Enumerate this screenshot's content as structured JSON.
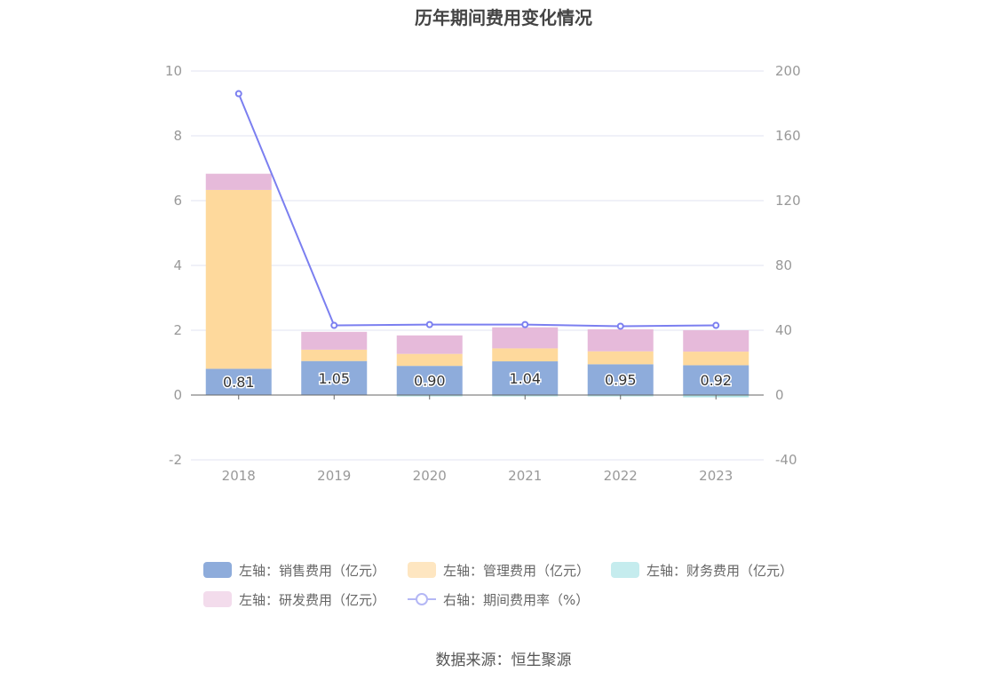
{
  "chart_data": {
    "type": "bar",
    "title": "历年期间费用变化情况",
    "categories": [
      "2018",
      "2019",
      "2020",
      "2021",
      "2022",
      "2023"
    ],
    "y_left": {
      "min": -2,
      "max": 10,
      "ticks": [
        "10",
        "8",
        "6",
        "4",
        "2",
        "0",
        "-2"
      ]
    },
    "y_right": {
      "min": -40,
      "max": 200,
      "ticks": [
        "200",
        "160",
        "120",
        "80",
        "40",
        "0",
        "-40"
      ]
    },
    "series": [
      {
        "name": "左轴：销售费用（亿元）",
        "type": "bar",
        "axis": "left",
        "color": "#8eacdb",
        "values": [
          0.81,
          1.05,
          0.9,
          1.04,
          0.95,
          0.92
        ],
        "labels": [
          "0.81",
          "1.05",
          "0.90",
          "1.04",
          "0.95",
          "0.92"
        ]
      },
      {
        "name": "左轴：管理费用（亿元）",
        "type": "bar",
        "axis": "left",
        "color": "#fed99c",
        "values": [
          5.52,
          0.35,
          0.37,
          0.4,
          0.4,
          0.42
        ]
      },
      {
        "name": "左轴：财务费用（亿元）",
        "type": "bar",
        "axis": "left",
        "color": "#aee3e6",
        "values": [
          0.0,
          0.0,
          -0.01,
          -0.03,
          -0.03,
          -0.07
        ]
      },
      {
        "name": "左轴：研发费用（亿元）",
        "type": "bar",
        "axis": "left",
        "color": "#e6bada",
        "values": [
          0.5,
          0.55,
          0.57,
          0.65,
          0.68,
          0.66
        ]
      },
      {
        "name": "右轴：期间费用率（%）",
        "type": "line",
        "axis": "right",
        "color": "#7b7ff0",
        "values": [
          186,
          43,
          43.5,
          43.5,
          42.5,
          43
        ]
      }
    ],
    "grid": true,
    "legend_position": "bottom"
  },
  "source": "数据来源：恒生聚源",
  "colors": {
    "axis_text": "#999999",
    "grid": "#e0e3f0",
    "axis_line": "#666666"
  }
}
